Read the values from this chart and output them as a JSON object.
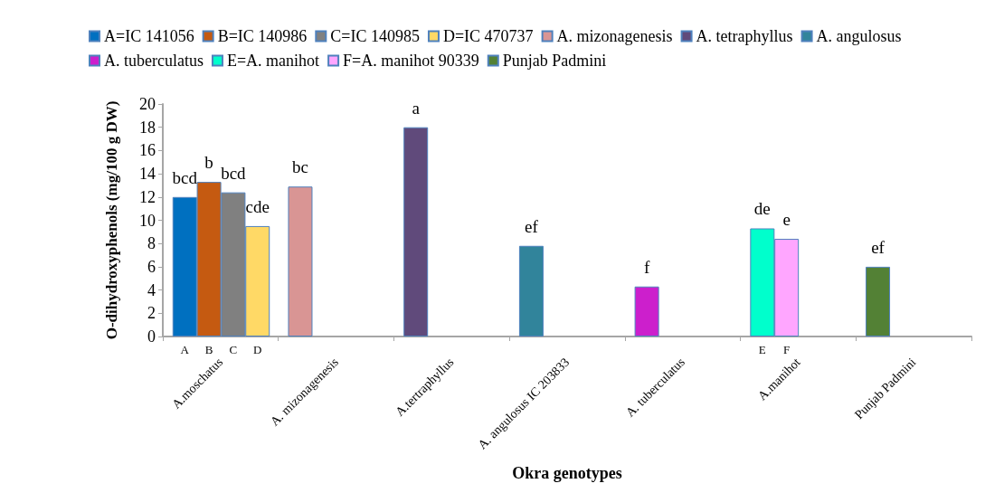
{
  "chart_data": {
    "type": "bar",
    "categories": [
      "A.moschatus",
      "A. mizonagenesis",
      "A.tertraphyllus",
      "A. angulosus IC 203833",
      "A. tuberculatus",
      "A.manihot",
      "Punjab Padmini"
    ],
    "series": [
      {
        "name": "A=IC 141056",
        "color": "#0070c0",
        "values": [
          12.0,
          null,
          null,
          null,
          null,
          null,
          null
        ],
        "value_labels": [
          "bcd",
          null,
          null,
          null,
          null,
          null,
          null
        ]
      },
      {
        "name": "B=IC 140986",
        "color": "#c55a11",
        "values": [
          13.3,
          null,
          null,
          null,
          null,
          null,
          null
        ],
        "value_labels": [
          "b",
          null,
          null,
          null,
          null,
          null,
          null
        ]
      },
      {
        "name": "C=IC 140985",
        "color": "#808080",
        "values": [
          12.4,
          null,
          null,
          null,
          null,
          null,
          null
        ],
        "value_labels": [
          "bcd",
          null,
          null,
          null,
          null,
          null,
          null
        ]
      },
      {
        "name": "D=IC 470737",
        "color": "#ffd966",
        "values": [
          9.5,
          null,
          null,
          null,
          null,
          null,
          null
        ],
        "value_labels": [
          "cde",
          null,
          null,
          null,
          null,
          null,
          null
        ]
      },
      {
        "name": "A. mizonagenesis",
        "color": "#d99594",
        "values": [
          null,
          12.9,
          null,
          null,
          null,
          null,
          null
        ],
        "value_labels": [
          null,
          "bc",
          null,
          null,
          null,
          null,
          null
        ]
      },
      {
        "name": "A. tetraphyllus",
        "color": "#604a7b",
        "values": [
          null,
          null,
          18.0,
          null,
          null,
          null,
          null
        ],
        "value_labels": [
          null,
          null,
          "a",
          null,
          null,
          null,
          null
        ]
      },
      {
        "name": "A. angulosus",
        "color": "#31849b",
        "values": [
          null,
          null,
          null,
          7.8,
          null,
          null,
          null
        ],
        "value_labels": [
          null,
          null,
          null,
          "ef",
          null,
          null,
          null
        ]
      },
      {
        "name": "A. tuberculatus",
        "color": "#cc1fcc",
        "values": [
          null,
          null,
          null,
          null,
          4.3,
          null,
          null
        ],
        "value_labels": [
          null,
          null,
          null,
          null,
          "f",
          null,
          null
        ]
      },
      {
        "name": "E=A. manihot",
        "color": "#00ffcc",
        "values": [
          null,
          null,
          null,
          null,
          null,
          9.3,
          null
        ],
        "value_labels": [
          null,
          null,
          null,
          null,
          null,
          "de",
          null
        ]
      },
      {
        "name": "F=A. manihot 90339",
        "color": "#ffa6ff",
        "values": [
          null,
          null,
          null,
          null,
          null,
          8.4,
          null
        ],
        "value_labels": [
          null,
          null,
          null,
          null,
          null,
          "e",
          null
        ]
      },
      {
        "name": "Punjab Padmini",
        "color": "#538135",
        "values": [
          null,
          null,
          null,
          null,
          null,
          null,
          6.0
        ],
        "value_labels": [
          null,
          null,
          null,
          null,
          null,
          null,
          "ef"
        ]
      }
    ],
    "xlabel": "Okra genotypes",
    "ylabel": "O-dihydroxyphenols (mg/100 g DW)",
    "ylim": [
      0,
      20
    ],
    "yticks": [
      0,
      2,
      4,
      6,
      8,
      10,
      12,
      14,
      16,
      18,
      20
    ],
    "annotations": [
      "A",
      "B",
      "C",
      "D",
      "E",
      "F"
    ],
    "legend": "top"
  }
}
